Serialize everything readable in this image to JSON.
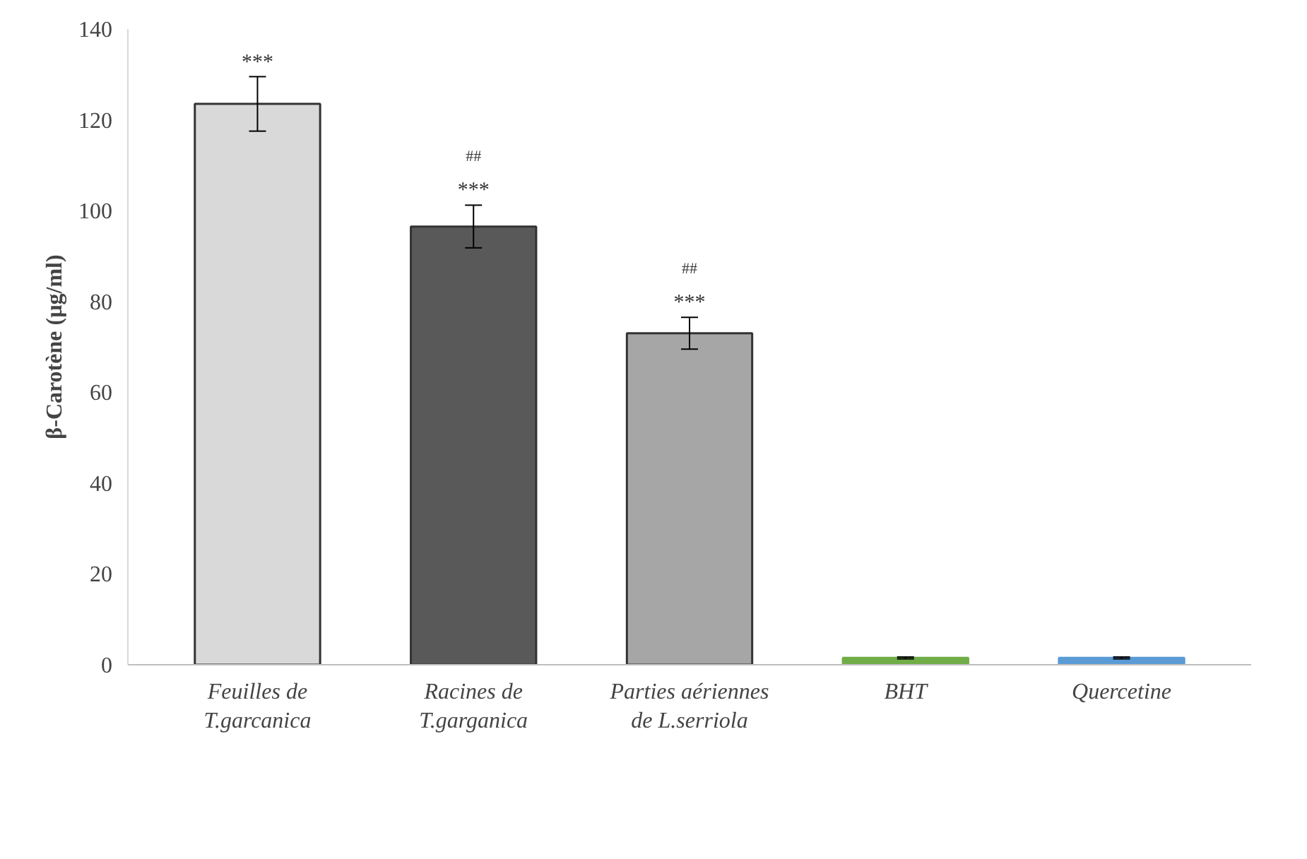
{
  "chart_data": {
    "type": "bar",
    "ylabel": "β-Carotène (µg/ml)",
    "categories": [
      "Feuilles de\nT.garcanica",
      "Racines de\nT.garganica",
      "Parties aériennes\nde L.serriola",
      "BHT",
      "Quercetine"
    ],
    "values": [
      123.5,
      96.5,
      73,
      1.5,
      1.5
    ],
    "errors": [
      6,
      4.7,
      3.5,
      0.2,
      0.2
    ],
    "colors": [
      "#d9d9d9",
      "#595959",
      "#a6a6a6",
      "#70ad47",
      "#5b9bd5"
    ],
    "ylim": [
      0,
      140
    ],
    "yticks": [
      0,
      20,
      40,
      60,
      80,
      100,
      120,
      140
    ],
    "grid": false,
    "annotations": [
      {
        "text": "***",
        "x": "Feuilles de\nT.garcanica",
        "y": 123.5
      },
      {
        "text": "***",
        "x": "Racines de\nT.garganica",
        "y": 96.5
      },
      "##",
      {
        "text": "***",
        "x": "Parties aériennes\nde L.serriola",
        "y": 73
      },
      "##"
    ]
  }
}
